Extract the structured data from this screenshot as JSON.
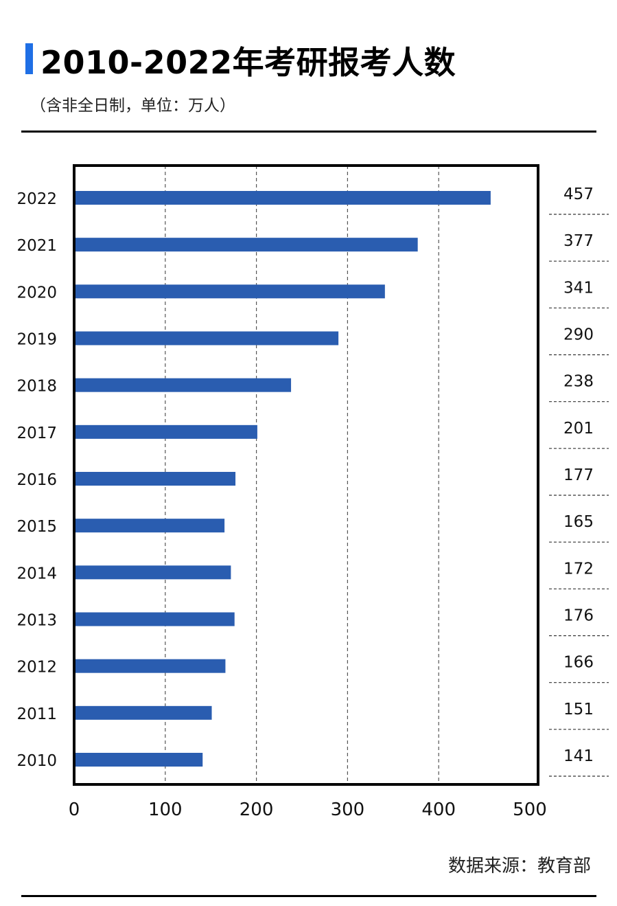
{
  "header": {
    "title": "2010-2022年考研报考人数",
    "subtitle": "（含非全日制，单位：万人）"
  },
  "footer": {
    "source": "数据来源：教育部"
  },
  "colors": {
    "accent": "#1f6fe5",
    "bar": "#2a5db0",
    "frame": "#000000",
    "grid": "#555555"
  },
  "chart_data": {
    "type": "bar",
    "orientation": "horizontal",
    "categories": [
      "2022",
      "2021",
      "2020",
      "2019",
      "2018",
      "2017",
      "2016",
      "2015",
      "2014",
      "2013",
      "2012",
      "2011",
      "2010"
    ],
    "values": [
      457,
      377,
      341,
      290,
      238,
      201,
      177,
      165,
      172,
      176,
      166,
      151,
      141
    ],
    "value_labels": [
      "457",
      "377",
      "341",
      "290",
      "238",
      "201",
      "177",
      "165",
      "172",
      "176",
      "166",
      "151",
      "141"
    ],
    "xlim": [
      0,
      500
    ],
    "x_ticks": [
      0,
      100,
      200,
      300,
      400,
      500
    ],
    "x_tick_labels": [
      "0",
      "100",
      "200",
      "300",
      "400",
      "500"
    ],
    "grid": "vertical-dashed",
    "legend": "none"
  }
}
